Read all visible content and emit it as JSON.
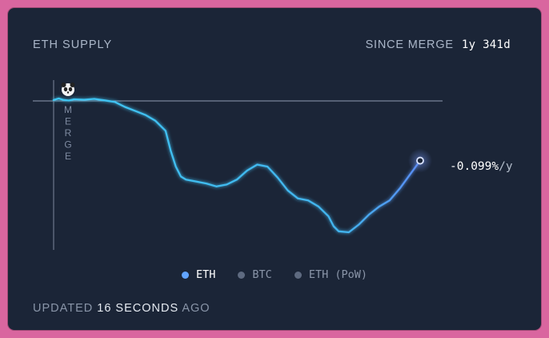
{
  "header": {
    "title": "ETH SUPPLY",
    "since_label": "SINCE MERGE",
    "since_value": "1y 341d"
  },
  "chart_data": {
    "type": "line",
    "series": [
      {
        "name": "ETH",
        "color": "#3ec6f2",
        "end_color": "#5a8cf5",
        "points": [
          [
            0,
            0.05
          ],
          [
            0.5,
            0.12
          ],
          [
            1,
            0.05
          ],
          [
            1.5,
            0.02
          ],
          [
            2,
            0.08
          ],
          [
            3,
            0.06
          ],
          [
            4,
            0.1
          ],
          [
            5,
            0.03
          ],
          [
            6,
            -0.05
          ],
          [
            7,
            -0.3
          ],
          [
            8,
            -0.5
          ],
          [
            9,
            -0.7
          ],
          [
            10,
            -1.0
          ],
          [
            11,
            -1.5
          ],
          [
            11.5,
            -2.5
          ],
          [
            12,
            -3.3
          ],
          [
            12.5,
            -3.8
          ],
          [
            13,
            -3.95
          ],
          [
            14,
            -4.05
          ],
          [
            15,
            -4.15
          ],
          [
            16,
            -4.3
          ],
          [
            17,
            -4.2
          ],
          [
            18,
            -3.95
          ],
          [
            19,
            -3.5
          ],
          [
            20,
            -3.2
          ],
          [
            21,
            -3.3
          ],
          [
            22,
            -3.85
          ],
          [
            23,
            -4.5
          ],
          [
            24,
            -4.9
          ],
          [
            25,
            -5.0
          ],
          [
            26,
            -5.3
          ],
          [
            27,
            -5.8
          ],
          [
            27.5,
            -6.3
          ],
          [
            28,
            -6.55
          ],
          [
            29,
            -6.6
          ],
          [
            30,
            -6.2
          ],
          [
            31,
            -5.7
          ],
          [
            32,
            -5.3
          ],
          [
            33,
            -5.0
          ],
          [
            34,
            -4.4
          ],
          [
            35,
            -3.7
          ],
          [
            36,
            -3.0
          ]
        ]
      }
    ],
    "end_label": {
      "value": "-0.099%",
      "unit": "/y"
    },
    "merge_label": "MERGE",
    "merge_icon": "panda-icon",
    "legend": [
      {
        "label": "ETH",
        "active": true
      },
      {
        "label": "BTC",
        "active": false
      },
      {
        "label": "ETH (PoW)",
        "active": false
      }
    ],
    "xlim": [
      0,
      36
    ],
    "ylim": [
      -6.6,
      0.15
    ]
  },
  "footer": {
    "updated_prefix": "UPDATED",
    "updated_time": "16 SECONDS",
    "updated_suffix": "AGO"
  }
}
